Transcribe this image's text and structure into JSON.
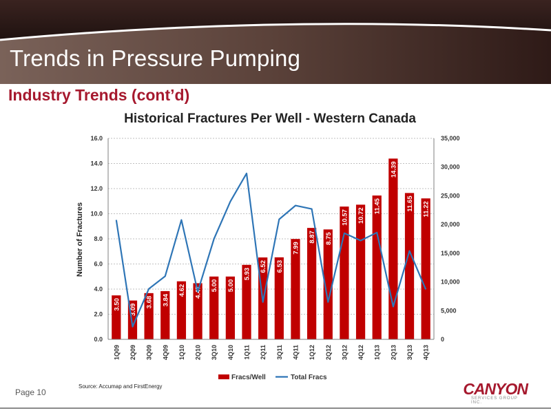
{
  "slide": {
    "title": "Trends in Pressure Pumping",
    "section_title": "Industry Trends (cont’d)",
    "page_label": "Page 10",
    "source_note": "Source: Accumap and FirstEnergy",
    "logo_text": "CANYON",
    "logo_subtext": "SERVICES GROUP INC.",
    "colors": {
      "header_dark": "#2b1c1a",
      "header_mid": "#6a5148",
      "accent": "#a6192e"
    }
  },
  "chart_data": {
    "type": "bar",
    "title": "Historical Fractures Per Well - Western Canada",
    "ylabel": "Number of Fractures",
    "xlabel": "",
    "categories": [
      "1Q09",
      "2Q09",
      "3Q09",
      "4Q09",
      "1Q10",
      "2Q10",
      "3Q10",
      "4Q10",
      "1Q11",
      "2Q11",
      "3Q11",
      "4Q11",
      "1Q12",
      "2Q12",
      "3Q12",
      "4Q12",
      "1Q13",
      "2Q13",
      "3Q13",
      "4Q13"
    ],
    "series": [
      {
        "name": "Fracs/Well",
        "type": "bar",
        "axis": "left",
        "color": "#c00000",
        "values": [
          3.5,
          3.09,
          3.68,
          3.84,
          4.62,
          4.47,
          5.0,
          5.0,
          5.93,
          6.52,
          6.53,
          7.99,
          8.87,
          8.75,
          10.57,
          10.72,
          11.45,
          14.39,
          11.65,
          11.22
        ],
        "labels": [
          "3.50",
          "3.09",
          "3.68",
          "3.84",
          "4.62",
          "4.47",
          "5.00",
          "5.00",
          "5.93",
          "6.52",
          "6.53",
          "7.99",
          "8.87",
          "8.75",
          "10.57",
          "10.72",
          "11.45",
          "14.39",
          "11.65",
          "11.22"
        ]
      },
      {
        "name": "Total Fracs",
        "type": "line",
        "axis": "right",
        "color": "#2e75b6",
        "values": [
          20800,
          2200,
          8800,
          11000,
          20800,
          8300,
          17500,
          24000,
          28900,
          6500,
          20900,
          23300,
          22700,
          6500,
          18500,
          17200,
          18600,
          5700,
          15400,
          8700
        ]
      }
    ],
    "y_left": {
      "range": [
        0,
        16
      ],
      "ticks": [
        "0.0",
        "2.0",
        "4.0",
        "6.0",
        "8.0",
        "10.0",
        "12.0",
        "14.0",
        "16.0"
      ]
    },
    "y_right": {
      "range": [
        0,
        35000
      ],
      "ticks": [
        "0",
        "5,000",
        "10,000",
        "15,000",
        "20,000",
        "25,000",
        "30,000",
        "35,000"
      ]
    },
    "grid": true,
    "legend_position": "bottom"
  }
}
